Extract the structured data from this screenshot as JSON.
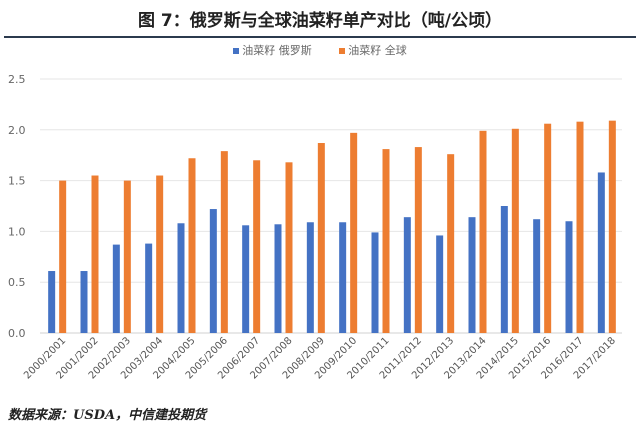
{
  "chart_data": {
    "type": "bar",
    "title": "图 7：俄罗斯与全球油菜籽单产对比（吨/公顷）",
    "categories": [
      "2000/2001",
      "2001/2002",
      "2002/2003",
      "2003/2004",
      "2004/2005",
      "2005/2006",
      "2006/2007",
      "2007/2008",
      "2008/2009",
      "2009/2010",
      "2010/2011",
      "2011/2012",
      "2012/2013",
      "2013/2014",
      "2014/2015",
      "2015/2016",
      "2016/2017",
      "2017/2018"
    ],
    "series": [
      {
        "name": "油菜籽 俄罗斯",
        "color": "#4472c4",
        "values": [
          0.61,
          0.61,
          0.87,
          0.88,
          1.08,
          1.22,
          1.06,
          1.07,
          1.09,
          1.09,
          0.99,
          1.14,
          0.96,
          1.14,
          1.25,
          1.12,
          1.1,
          1.58
        ]
      },
      {
        "name": "油菜籽 全球",
        "color": "#ed7d31",
        "values": [
          1.5,
          1.55,
          1.5,
          1.55,
          1.72,
          1.79,
          1.7,
          1.68,
          1.87,
          1.97,
          1.81,
          1.83,
          1.76,
          1.99,
          2.01,
          2.06,
          2.08,
          2.09
        ]
      }
    ],
    "yticks": [
      "0.0",
      "0.5",
      "1.0",
      "1.5",
      "2.0",
      "2.5"
    ],
    "ylim": [
      0,
      2.5
    ],
    "xlabel": "",
    "ylabel": "",
    "grid": true,
    "legend": "top"
  },
  "source": "数据来源：USDA，中信建投期货"
}
